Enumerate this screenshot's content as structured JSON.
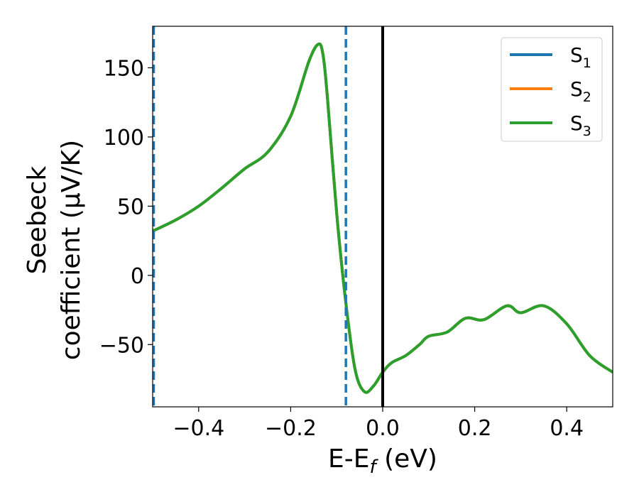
{
  "chart_data": {
    "type": "line",
    "xlabel": "E-E",
    "xlabel_sub": "f",
    "xlabel_unit": " (eV)",
    "ylabel_line1": "Seebeck",
    "ylabel_line2": "coefficient  (μV/K)",
    "xlim": [
      -0.5,
      0.5
    ],
    "ylim": [
      -95,
      180
    ],
    "xticks": [
      -0.4,
      -0.2,
      0.0,
      0.2,
      0.4
    ],
    "xtick_labels": [
      "−0.4",
      "−0.2",
      "0.0",
      "0.2",
      "0.4"
    ],
    "yticks": [
      -50,
      0,
      50,
      100,
      150
    ],
    "ytick_labels": [
      "−50",
      "0",
      "50",
      "100",
      "150"
    ],
    "legend_position": "top-right",
    "grid": false,
    "series": [
      {
        "name": "S",
        "sub": "1",
        "color": "#1f77b4",
        "x": [
          -0.5,
          -0.45,
          -0.4,
          -0.35,
          -0.3,
          -0.25,
          -0.2,
          -0.16,
          -0.14,
          -0.13,
          -0.12,
          -0.1,
          -0.08,
          -0.06,
          -0.04,
          -0.02,
          0.0,
          0.02,
          0.05,
          0.08,
          0.1,
          0.14,
          0.18,
          0.22,
          0.27,
          0.3,
          0.35,
          0.4,
          0.45,
          0.5
        ],
        "y": [
          32,
          40,
          50,
          63,
          77,
          89,
          115,
          155,
          167,
          160,
          128,
          45,
          -20,
          -68,
          -84,
          -80,
          -70,
          -63,
          -58,
          -50,
          -44,
          -41,
          -31,
          -32,
          -22,
          -27,
          -22,
          -35,
          -58,
          -70
        ]
      },
      {
        "name": "S",
        "sub": "2",
        "color": "#ff7f0e",
        "x": [
          -0.5,
          -0.45,
          -0.4,
          -0.35,
          -0.3,
          -0.25,
          -0.2,
          -0.16,
          -0.14,
          -0.13,
          -0.12,
          -0.1,
          -0.08,
          -0.06,
          -0.04,
          -0.02,
          0.0,
          0.02,
          0.05,
          0.08,
          0.1,
          0.14,
          0.18,
          0.22,
          0.27,
          0.3,
          0.35,
          0.4,
          0.45,
          0.5
        ],
        "y": [
          32,
          40,
          50,
          63,
          77,
          89,
          115,
          155,
          167,
          160,
          128,
          45,
          -20,
          -68,
          -84,
          -80,
          -70,
          -63,
          -58,
          -50,
          -44,
          -41,
          -31,
          -32,
          -22,
          -27,
          -22,
          -35,
          -58,
          -70
        ]
      },
      {
        "name": "S",
        "sub": "3",
        "color": "#2ca02c",
        "x": [
          -0.5,
          -0.45,
          -0.4,
          -0.35,
          -0.3,
          -0.25,
          -0.2,
          -0.16,
          -0.14,
          -0.13,
          -0.12,
          -0.1,
          -0.08,
          -0.06,
          -0.04,
          -0.02,
          0.0,
          0.02,
          0.05,
          0.08,
          0.1,
          0.14,
          0.18,
          0.22,
          0.27,
          0.3,
          0.35,
          0.4,
          0.45,
          0.5
        ],
        "y": [
          32,
          40,
          50,
          63,
          77,
          89,
          115,
          155,
          167,
          160,
          128,
          45,
          -20,
          -68,
          -84,
          -80,
          -70,
          -63,
          -58,
          -50,
          -44,
          -41,
          -31,
          -32,
          -22,
          -27,
          -22,
          -35,
          -58,
          -70
        ]
      }
    ],
    "vlines": [
      {
        "x": -0.5,
        "color": "#1f77b4",
        "style": "dashed"
      },
      {
        "x": -0.08,
        "color": "#1f77b4",
        "style": "dashed"
      },
      {
        "x": 0.0,
        "color": "#000000",
        "style": "solid"
      }
    ]
  }
}
